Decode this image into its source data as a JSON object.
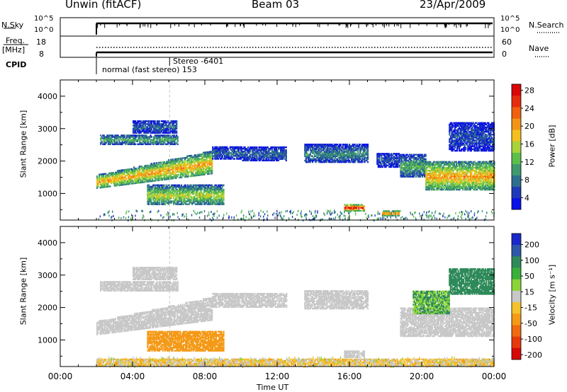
{
  "header": {
    "station": "Unwin (fitACF)",
    "beam": "Beam 03",
    "date": "23/Apr/2009"
  },
  "top_panels": {
    "nsky": {
      "label": "N.Sky",
      "tick_hi": "10^5",
      "tick_lo": "10^0"
    },
    "nsearch": {
      "label": "N.Search",
      "tick_hi": "10^5",
      "tick_lo": "10^0"
    },
    "freq": {
      "label_1": "Freq.",
      "label_2": "[MHz]",
      "tick_hi": "18",
      "tick_lo": "8"
    },
    "nave": {
      "label": "Nave",
      "tick_hi": "60",
      "tick_lo": "0"
    },
    "cpid": {
      "label": "CPID",
      "mode_1": "Stereo -6401",
      "mode_2": "normal (fast stereo) 153"
    }
  },
  "chart_data": [
    {
      "type": "heatmap",
      "name": "power",
      "xlabel": "Time UT",
      "ylabel": "Slant Range [km]",
      "x_range": [
        "00:00",
        "24:00"
      ],
      "ylim": [
        180,
        4500
      ],
      "ytick_labels": [
        "1000",
        "2000",
        "3000",
        "4000"
      ],
      "colorbar": {
        "label": "Power [dB]",
        "ticks": [
          "4",
          "8",
          "12",
          "16",
          "20",
          "24",
          "28"
        ],
        "colors": [
          "#0a10e8",
          "#1e3ab8",
          "#2f6f8f",
          "#3f9a6e",
          "#5bbf4a",
          "#a8d23a",
          "#f2c01e",
          "#f39418",
          "#ef6010",
          "#e62c0c",
          "#d80808"
        ]
      },
      "echo_regions": [
        {
          "t_start": 2.0,
          "t_end": 8.4,
          "range_start_km": 1150,
          "range_end_km": 1550,
          "range_end_at_end_km": 2300,
          "level_db": 18
        },
        {
          "t_start": 2.2,
          "t_end": 6.5,
          "range_start_km": 2500,
          "range_end_km": 2800,
          "level_db": 10
        },
        {
          "t_start": 4.0,
          "t_end": 6.4,
          "range_start_km": 2850,
          "range_end_km": 3250,
          "level_db": 6
        },
        {
          "t_start": 8.4,
          "t_end": 10.0,
          "range_start_km": 2050,
          "range_end_km": 2450,
          "level_db": 6
        },
        {
          "t_start": 10.0,
          "t_end": 12.5,
          "range_start_km": 2000,
          "range_end_km": 2450,
          "level_db": 6
        },
        {
          "t_start": 13.5,
          "t_end": 17.0,
          "range_start_km": 1950,
          "range_end_km": 2500,
          "level_db": 8
        },
        {
          "t_start": 17.5,
          "t_end": 18.8,
          "range_start_km": 1800,
          "range_end_km": 2250,
          "level_db": 5
        },
        {
          "t_start": 4.8,
          "t_end": 9.0,
          "range_start_km": 650,
          "range_end_km": 1250,
          "level_db": 14
        },
        {
          "t_start": 18.8,
          "t_end": 20.2,
          "range_start_km": 1500,
          "range_end_km": 2200,
          "level_db": 10
        },
        {
          "t_start": 20.2,
          "t_end": 24.0,
          "range_start_km": 1100,
          "range_end_km": 2000,
          "level_db": 18
        },
        {
          "t_start": 21.5,
          "t_end": 24.0,
          "range_start_km": 2300,
          "range_end_km": 3200,
          "level_db": 5
        },
        {
          "t_start": 15.7,
          "t_end": 16.8,
          "range_start_km": 450,
          "range_end_km": 650,
          "level_db": 26
        },
        {
          "t_start": 17.8,
          "t_end": 18.7,
          "range_start_km": 300,
          "range_end_km": 450,
          "level_db": 22
        }
      ]
    },
    {
      "type": "heatmap",
      "name": "velocity",
      "xlabel": "Time UT",
      "ylabel": "Slant Range [km]",
      "x_range": [
        "00:00",
        "24:00"
      ],
      "xtick_labels": [
        "00:00",
        "04:00",
        "08:00",
        "12:00",
        "16:00",
        "20:00",
        "00:00"
      ],
      "ylim": [
        180,
        4500
      ],
      "ytick_labels": [
        "1000",
        "2000",
        "3000",
        "4000"
      ],
      "colorbar": {
        "label": "Velocity [m s⁻¹]",
        "ticks": [
          "200",
          "100",
          "50",
          "15",
          "-15",
          "-50",
          "-100",
          "-200"
        ],
        "colors": [
          "#1a28c8",
          "#2f58a8",
          "#2f8a5a",
          "#3ab03a",
          "#8ad43a",
          "#c8c8c8",
          "#f4c22a",
          "#f49a18",
          "#ef6a10",
          "#e63a0c",
          "#d80808"
        ]
      },
      "echo_regions": [
        {
          "t_start": 2.0,
          "t_end": 8.4,
          "range_start_km": 1150,
          "range_end_km": 1550,
          "range_end_at_end_km": 2300,
          "velocity": 0
        },
        {
          "t_start": 2.2,
          "t_end": 6.5,
          "range_start_km": 2500,
          "range_end_km": 2800,
          "velocity": 0
        },
        {
          "t_start": 4.0,
          "t_end": 6.4,
          "range_start_km": 2850,
          "range_end_km": 3250,
          "velocity": 0
        },
        {
          "t_start": 8.4,
          "t_end": 12.5,
          "range_start_km": 2000,
          "range_end_km": 2450,
          "velocity": 0
        },
        {
          "t_start": 13.5,
          "t_end": 17.0,
          "range_start_km": 1950,
          "range_end_km": 2500,
          "velocity": 0
        },
        {
          "t_start": 4.8,
          "t_end": 9.0,
          "range_start_km": 650,
          "range_end_km": 1250,
          "velocity": -60
        },
        {
          "t_start": 18.8,
          "t_end": 24.0,
          "range_start_km": 1100,
          "range_end_km": 2000,
          "velocity": 0
        },
        {
          "t_start": 19.5,
          "t_end": 21.5,
          "range_start_km": 1800,
          "range_end_km": 2500,
          "velocity": 30
        },
        {
          "t_start": 21.5,
          "t_end": 24.0,
          "range_start_km": 2400,
          "range_end_km": 3200,
          "velocity": 60
        },
        {
          "t_start": 15.7,
          "t_end": 16.8,
          "range_start_km": 450,
          "range_end_km": 650,
          "velocity": 0
        },
        {
          "t_start": 2.0,
          "t_end": 24.0,
          "range_start_km": 200,
          "range_end_km": 420,
          "velocity": -20
        }
      ]
    }
  ]
}
